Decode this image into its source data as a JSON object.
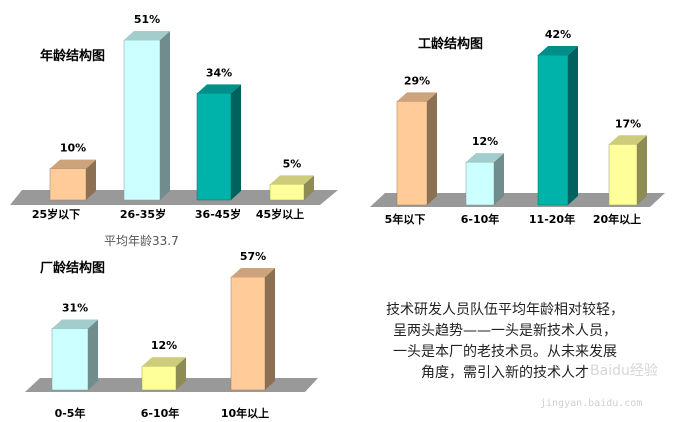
{
  "average_age": "平均年龄33.7",
  "description": [
    "技术研发人员队伍平均年龄相对较轻，",
    "呈两头趋势——一头是新技术人员，",
    "一头是本厂的老技术员。从未来发展",
    "角度，需引入新的技术人才"
  ],
  "watermark": {
    "brand": "Baidu经验",
    "url": "jingyan.baidu.com"
  },
  "colors": {
    "peach": "#FFCC99",
    "cyan": "#CCFFFF",
    "teal": "#00B3AA",
    "yellow": "#FFFF99",
    "floor": "#999999"
  },
  "chart_data": [
    {
      "type": "bar",
      "title": "年龄结构图",
      "categories": [
        "25岁以下",
        "26-35岁",
        "36-45岁",
        "45岁以上"
      ],
      "values": [
        10,
        51,
        34,
        5
      ],
      "value_labels": [
        "10%",
        "51%",
        "34%",
        "5%"
      ],
      "colors": [
        "#FFCC99",
        "#CCFFFF",
        "#00B3AA",
        "#FFFF99"
      ],
      "ylim": [
        0,
        51
      ]
    },
    {
      "type": "bar",
      "title": "工龄结构图",
      "categories": [
        "5年以下",
        "6-10年",
        "11-20年",
        "20年以上"
      ],
      "values": [
        29,
        12,
        42,
        17
      ],
      "value_labels": [
        "29%",
        "12%",
        "42%",
        "17%"
      ],
      "colors": [
        "#FFCC99",
        "#CCFFFF",
        "#00B3AA",
        "#FFFF99"
      ],
      "ylim": [
        0,
        42
      ]
    },
    {
      "type": "bar",
      "title": "厂龄结构图",
      "categories": [
        "0-5年",
        "6-10年",
        "10年以上"
      ],
      "values": [
        31,
        12,
        57
      ],
      "value_labels": [
        "31%",
        "12%",
        "57%"
      ],
      "colors": [
        "#CCFFFF",
        "#FFFF99",
        "#FFCC99"
      ],
      "ylim": [
        0,
        57
      ]
    }
  ]
}
